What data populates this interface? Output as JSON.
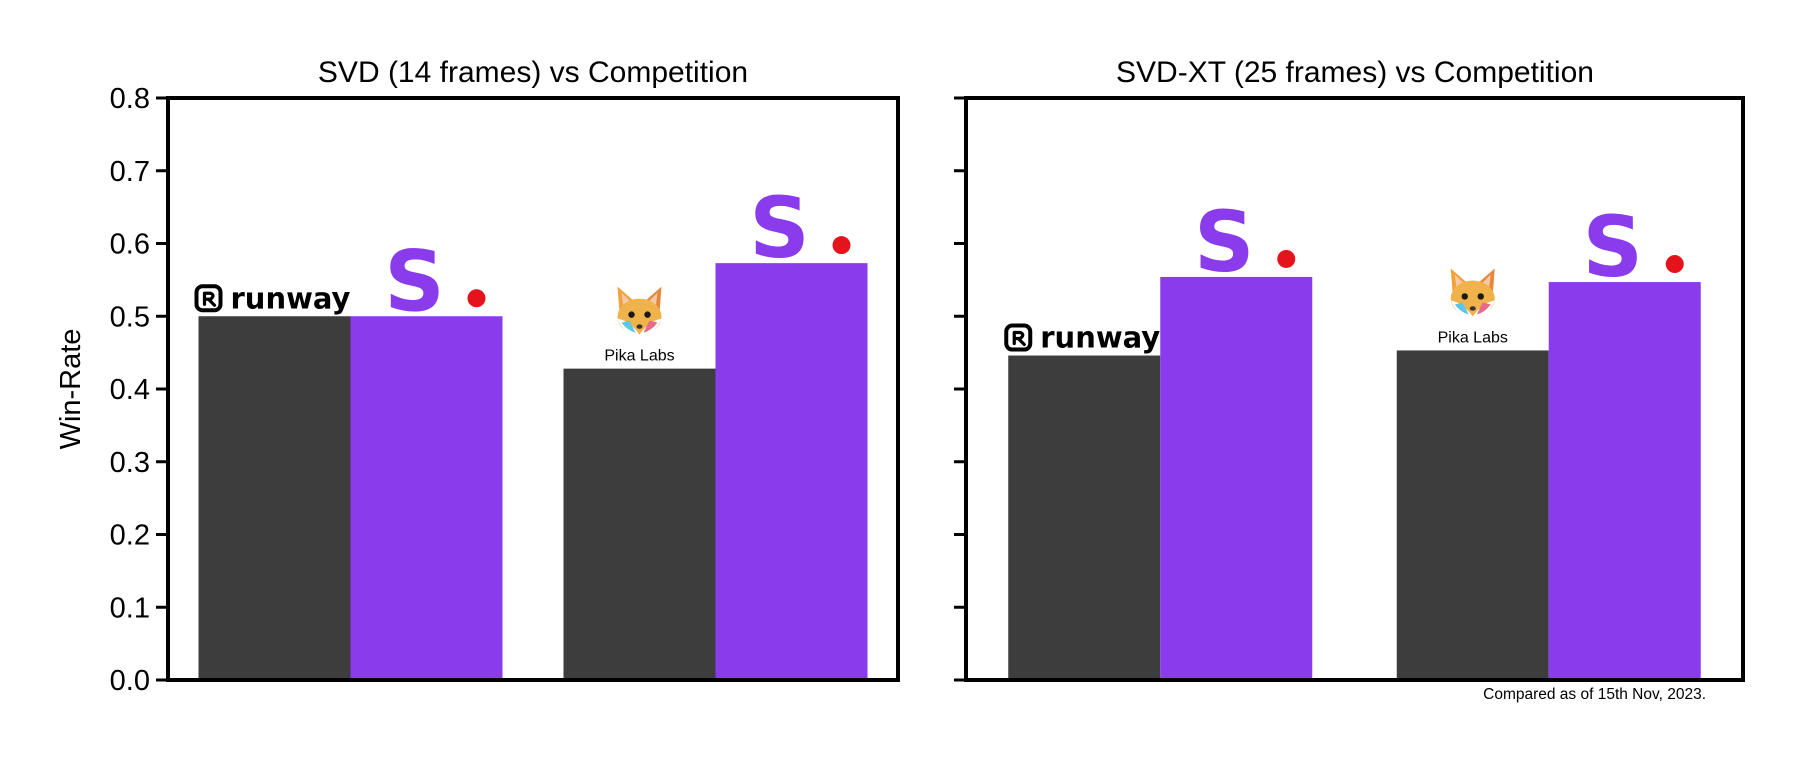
{
  "figure": {
    "footnote": "Compared as of 15th Nov, 2023."
  },
  "colors": {
    "competitor": "#3d3d3d",
    "stability": "#8a3beb",
    "stability_dot": "#e5141c",
    "axis": "#000000"
  },
  "chart_data": [
    {
      "type": "bar",
      "title": "SVD (14 frames) vs Competition",
      "ylabel": "Win-Rate",
      "ylim": [
        0.0,
        0.8
      ],
      "yticks": [
        "0.0",
        "0.1",
        "0.2",
        "0.3",
        "0.4",
        "0.5",
        "0.6",
        "0.7",
        "0.8"
      ],
      "categories": [
        "runway",
        "Pika Labs"
      ],
      "series": [
        {
          "values": [
            0.5,
            0.428
          ]
        },
        {
          "values": [
            0.5,
            0.573
          ]
        }
      ],
      "grid": false
    },
    {
      "type": "bar",
      "title": "SVD-XT (25 frames) vs Competition",
      "ylabel": "",
      "ylim": [
        0.0,
        0.8
      ],
      "yticks": [],
      "categories": [
        "runway",
        "Pika Labs"
      ],
      "series": [
        {
          "values": [
            0.446,
            0.453
          ]
        },
        {
          "values": [
            0.554,
            0.547
          ]
        }
      ],
      "grid": false
    }
  ],
  "logos": {
    "stability_letter": "S",
    "runway_text": "runway",
    "pika_text": "Pika Labs"
  }
}
